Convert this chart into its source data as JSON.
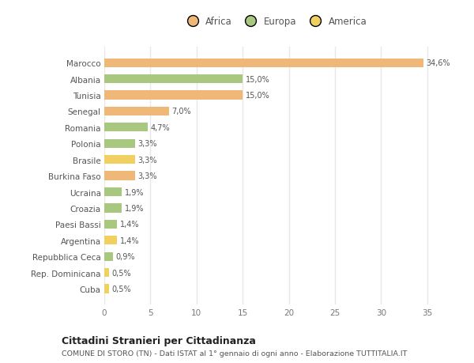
{
  "categories": [
    "Cuba",
    "Rep. Dominicana",
    "Repubblica Ceca",
    "Argentina",
    "Paesi Bassi",
    "Croazia",
    "Ucraina",
    "Burkina Faso",
    "Brasile",
    "Polonia",
    "Romania",
    "Senegal",
    "Tunisia",
    "Albania",
    "Marocco"
  ],
  "values": [
    0.5,
    0.5,
    0.9,
    1.4,
    1.4,
    1.9,
    1.9,
    3.3,
    3.3,
    3.3,
    4.7,
    7.0,
    15.0,
    15.0,
    34.6
  ],
  "colors": [
    "#f0d060",
    "#f0d060",
    "#a8c880",
    "#f0d060",
    "#a8c880",
    "#a8c880",
    "#a8c880",
    "#f0b878",
    "#f0d060",
    "#a8c880",
    "#a8c880",
    "#f0b878",
    "#f0b878",
    "#a8c880",
    "#f0b878"
  ],
  "labels": [
    "0,5%",
    "0,5%",
    "0,9%",
    "1,4%",
    "1,4%",
    "1,9%",
    "1,9%",
    "3,3%",
    "3,3%",
    "3,3%",
    "4,7%",
    "7,0%",
    "15,0%",
    "15,0%",
    "34,6%"
  ],
  "xlim": [
    0,
    37
  ],
  "xticks": [
    0,
    5,
    10,
    15,
    20,
    25,
    30,
    35
  ],
  "legend": [
    {
      "label": "Africa",
      "color": "#f0b878"
    },
    {
      "label": "Europa",
      "color": "#a8c880"
    },
    {
      "label": "America",
      "color": "#f0d060"
    }
  ],
  "title": "Cittadini Stranieri per Cittadinanza",
  "subtitle": "COMUNE DI STORO (TN) - Dati ISTAT al 1° gennaio di ogni anno - Elaborazione TUTTITALIA.IT",
  "background_color": "#ffffff",
  "grid_color": "#e8e8e8",
  "bar_height": 0.55
}
